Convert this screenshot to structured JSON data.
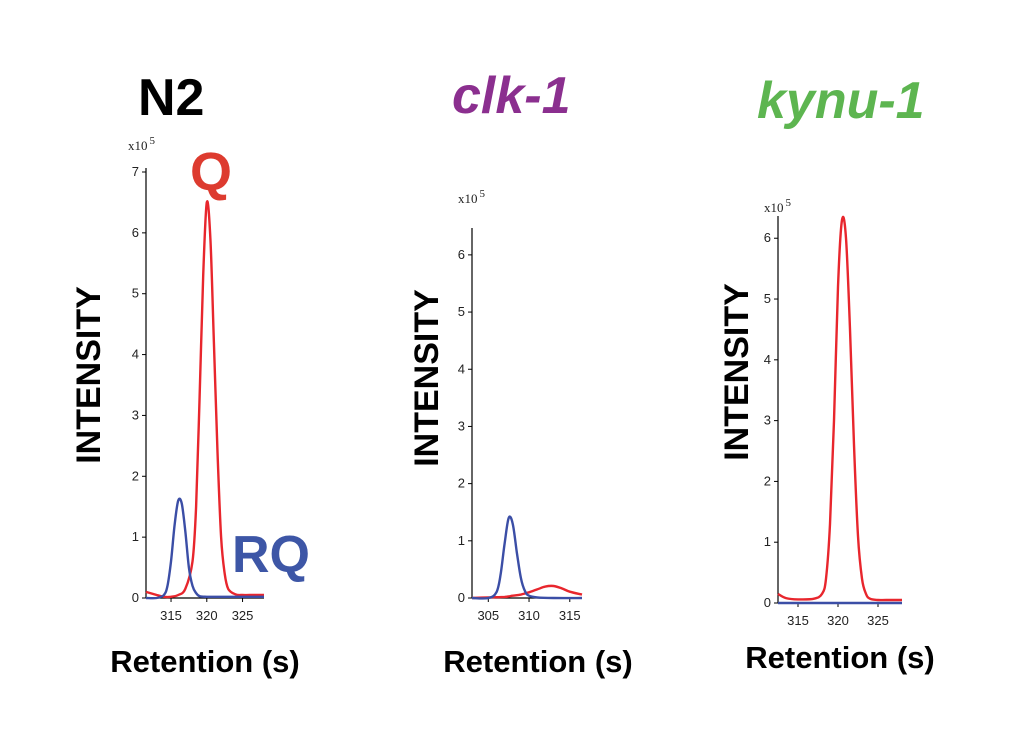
{
  "colors": {
    "q_line": "#e8262d",
    "rq_line": "#3b4ea6",
    "n2_title": "#000000",
    "clk_title": "#8b2f8f",
    "kynu_title": "#5db550",
    "q_label": "#dd3b2f",
    "rq_label": "#3d56a6"
  },
  "chart_data": [
    {
      "type": "line",
      "title": "N2",
      "ylabel": "INTENSITY",
      "xlabel": "Retention (s)",
      "y_multiplier": "x10",
      "y_exponent": "5",
      "xlim": [
        311.5,
        328
      ],
      "ylim": [
        0,
        7
      ],
      "xticks": [
        315,
        320,
        325
      ],
      "yticks": [
        0,
        1,
        2,
        3,
        4,
        5,
        6,
        7
      ],
      "annotations": [
        "Q",
        "RQ"
      ],
      "series": [
        {
          "name": "Q",
          "color_key": "q_line",
          "x": [
            311.5,
            313,
            314,
            315,
            316,
            317,
            318,
            318.5,
            319,
            319.5,
            320,
            320.5,
            321,
            321.5,
            322,
            322.5,
            323,
            324,
            325,
            326,
            328
          ],
          "y": [
            0.1,
            0.05,
            0.02,
            0.02,
            0.05,
            0.15,
            0.6,
            1.5,
            3.3,
            5.3,
            6.5,
            5.9,
            4.2,
            2.4,
            1.0,
            0.4,
            0.15,
            0.06,
            0.05,
            0.05,
            0.05
          ]
        },
        {
          "name": "RQ",
          "color_key": "rq_line",
          "x": [
            311.5,
            313,
            314,
            314.5,
            315,
            315.5,
            316,
            316.5,
            317,
            317.5,
            318,
            318.5,
            319,
            320,
            322,
            325,
            328
          ],
          "y": [
            0.0,
            0.0,
            0.05,
            0.2,
            0.6,
            1.2,
            1.6,
            1.55,
            1.1,
            0.5,
            0.2,
            0.08,
            0.03,
            0.02,
            0.02,
            0.02,
            0.02
          ]
        }
      ]
    },
    {
      "type": "line",
      "title": "clk-1",
      "ylabel": "INTENSITY",
      "xlabel": "Retention (s)",
      "y_multiplier": "x10",
      "y_exponent": "5",
      "xlim": [
        303,
        316.5
      ],
      "ylim": [
        0,
        6.4
      ],
      "xticks": [
        305,
        310,
        315
      ],
      "yticks": [
        0,
        1,
        2,
        3,
        4,
        5,
        6
      ],
      "series": [
        {
          "name": "Q",
          "color_key": "q_line",
          "x": [
            303,
            305,
            307,
            308,
            309,
            310,
            311,
            312,
            313,
            314,
            315,
            316.5
          ],
          "y": [
            0.0,
            0.01,
            0.02,
            0.04,
            0.06,
            0.1,
            0.15,
            0.2,
            0.21,
            0.17,
            0.11,
            0.06
          ]
        },
        {
          "name": "RQ",
          "color_key": "rq_line",
          "x": [
            303,
            305,
            306,
            306.5,
            307,
            307.5,
            308,
            308.5,
            309,
            309.5,
            310,
            311,
            313,
            316.5
          ],
          "y": [
            0.0,
            0.0,
            0.1,
            0.4,
            0.95,
            1.4,
            1.3,
            0.8,
            0.35,
            0.12,
            0.04,
            0.01,
            0.0,
            0.0
          ]
        }
      ]
    },
    {
      "type": "line",
      "title": "kynu-1",
      "ylabel": "INTENSITY",
      "xlabel": "Retention (s)",
      "y_multiplier": "x10",
      "y_exponent": "5",
      "xlim": [
        312.5,
        328
      ],
      "ylim": [
        0,
        6.3
      ],
      "xticks": [
        315,
        320,
        325
      ],
      "yticks": [
        0,
        1,
        2,
        3,
        4,
        5,
        6
      ],
      "series": [
        {
          "name": "Q",
          "color_key": "q_line",
          "x": [
            312.5,
            313.5,
            315,
            317,
            318,
            318.5,
            319,
            319.5,
            320,
            320.5,
            321,
            321.5,
            322,
            322.5,
            323,
            323.5,
            324,
            325,
            326,
            328
          ],
          "y": [
            0.15,
            0.08,
            0.06,
            0.07,
            0.15,
            0.4,
            1.3,
            3.0,
            5.2,
            6.3,
            6.0,
            4.5,
            2.6,
            1.1,
            0.4,
            0.15,
            0.07,
            0.05,
            0.05,
            0.05
          ]
        },
        {
          "name": "RQ",
          "color_key": "rq_line",
          "x": [
            312.5,
            320,
            328
          ],
          "y": [
            0.0,
            0.0,
            0.0
          ]
        }
      ]
    }
  ]
}
